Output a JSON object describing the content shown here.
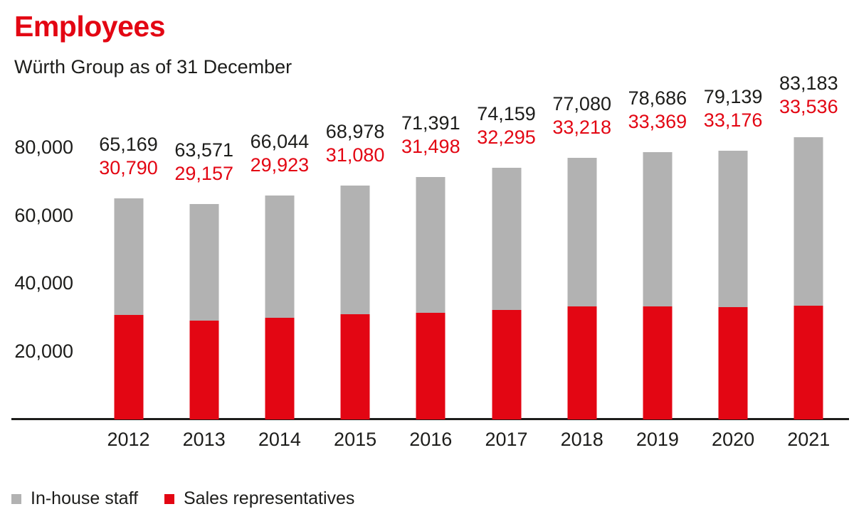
{
  "header": {
    "title": "Employees",
    "subtitle": "Würth Group as of 31 December"
  },
  "colors": {
    "brand_red": "#e30613",
    "gray": "#b2b2b2",
    "text_black": "#1d1d1b"
  },
  "chart_data": {
    "type": "bar",
    "stacked": true,
    "title": "Employees",
    "subtitle": "Würth Group as of 31 December",
    "categories": [
      "2012",
      "2013",
      "2014",
      "2015",
      "2016",
      "2017",
      "2018",
      "2019",
      "2020",
      "2021"
    ],
    "totals": {
      "description": "Total employees (black label above each bar; full bar height)",
      "values": [
        65169,
        63571,
        66044,
        68978,
        71391,
        74159,
        77080,
        78686,
        79139,
        83183
      ],
      "labels": [
        "65,169",
        "63,571",
        "66,044",
        "68,978",
        "71,391",
        "74,159",
        "77,080",
        "78,686",
        "79,139",
        "83,183"
      ],
      "label_color": "#1d1d1b"
    },
    "sales_representatives": {
      "description": "Sales representatives (red label above each bar; red lower segment)",
      "values": [
        30790,
        29157,
        29923,
        31080,
        31498,
        32295,
        33218,
        33369,
        33176,
        33536
      ],
      "labels": [
        "30,790",
        "29,157",
        "29,923",
        "31,080",
        "31,498",
        "32,295",
        "33,218",
        "33,369",
        "33,176",
        "33,536"
      ],
      "color": "#e30613"
    },
    "in_house_staff": {
      "description": "Gray upper segment; drawn as total minus sales representatives (no numeric labels shown)",
      "color": "#b2b2b2"
    },
    "yticks": [
      {
        "value": 20000,
        "label": "20,000"
      },
      {
        "value": 40000,
        "label": "40,000"
      },
      {
        "value": 60000,
        "label": "60,000"
      },
      {
        "value": 80000,
        "label": "80,000"
      }
    ],
    "ylim": [
      0,
      84000
    ],
    "grid": false,
    "legend_position": "bottom-left"
  },
  "legend": {
    "items": [
      {
        "label": "In-house staff",
        "color": "#b2b2b2"
      },
      {
        "label": "Sales representatives",
        "color": "#e30613"
      }
    ]
  }
}
